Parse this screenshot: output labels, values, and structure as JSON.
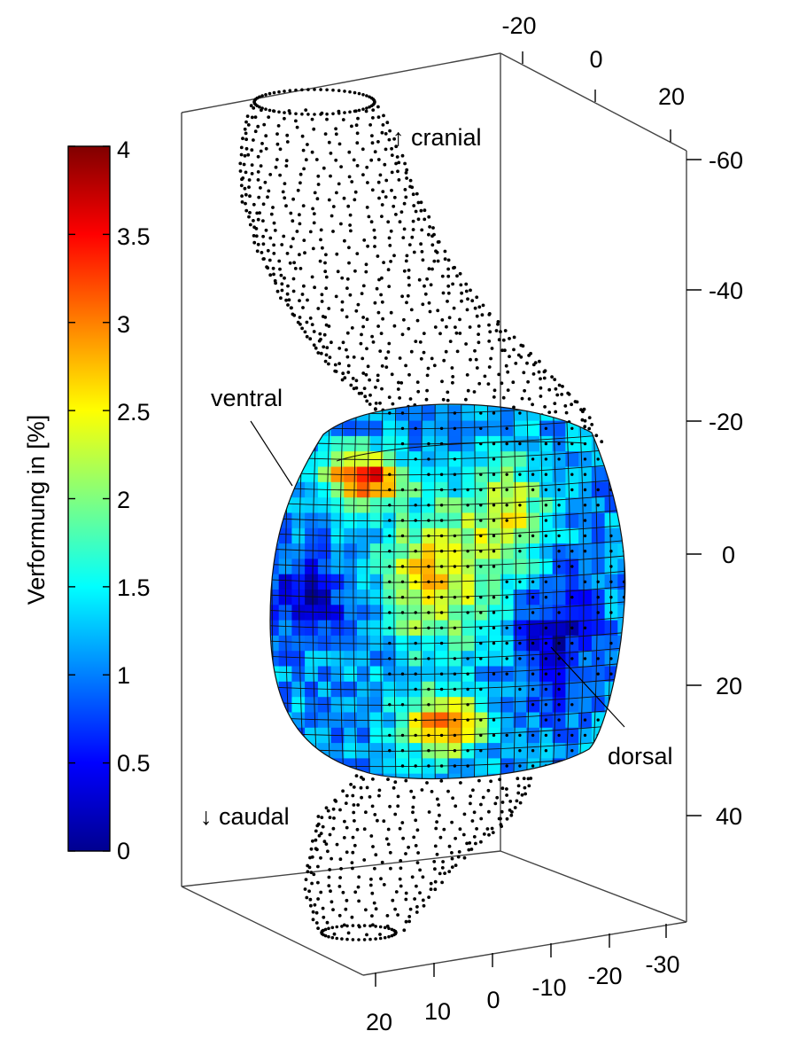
{
  "colorbar": {
    "label": "Verformung in [%]",
    "ticks": [
      "0",
      "0.5",
      "1",
      "1.5",
      "2",
      "2.5",
      "3",
      "3.5",
      "4"
    ],
    "range": [
      0,
      4
    ],
    "colormap": [
      "#00008f",
      "#0000ff",
      "#00ffff",
      "#ffff00",
      "#ff0000",
      "#800000"
    ]
  },
  "axes": {
    "top_ticks": [
      "-20",
      "0",
      "20"
    ],
    "right_ticks": [
      "-60",
      "-40",
      "-20",
      "0",
      "20",
      "40"
    ],
    "bottom_ticks": [
      "20",
      "10",
      "0",
      "-10",
      "-20",
      "-30"
    ]
  },
  "annotations": {
    "cranial": "↑ cranial",
    "caudal": "↓ caudal",
    "ventral": "ventral",
    "dorsal": "dorsal"
  }
}
